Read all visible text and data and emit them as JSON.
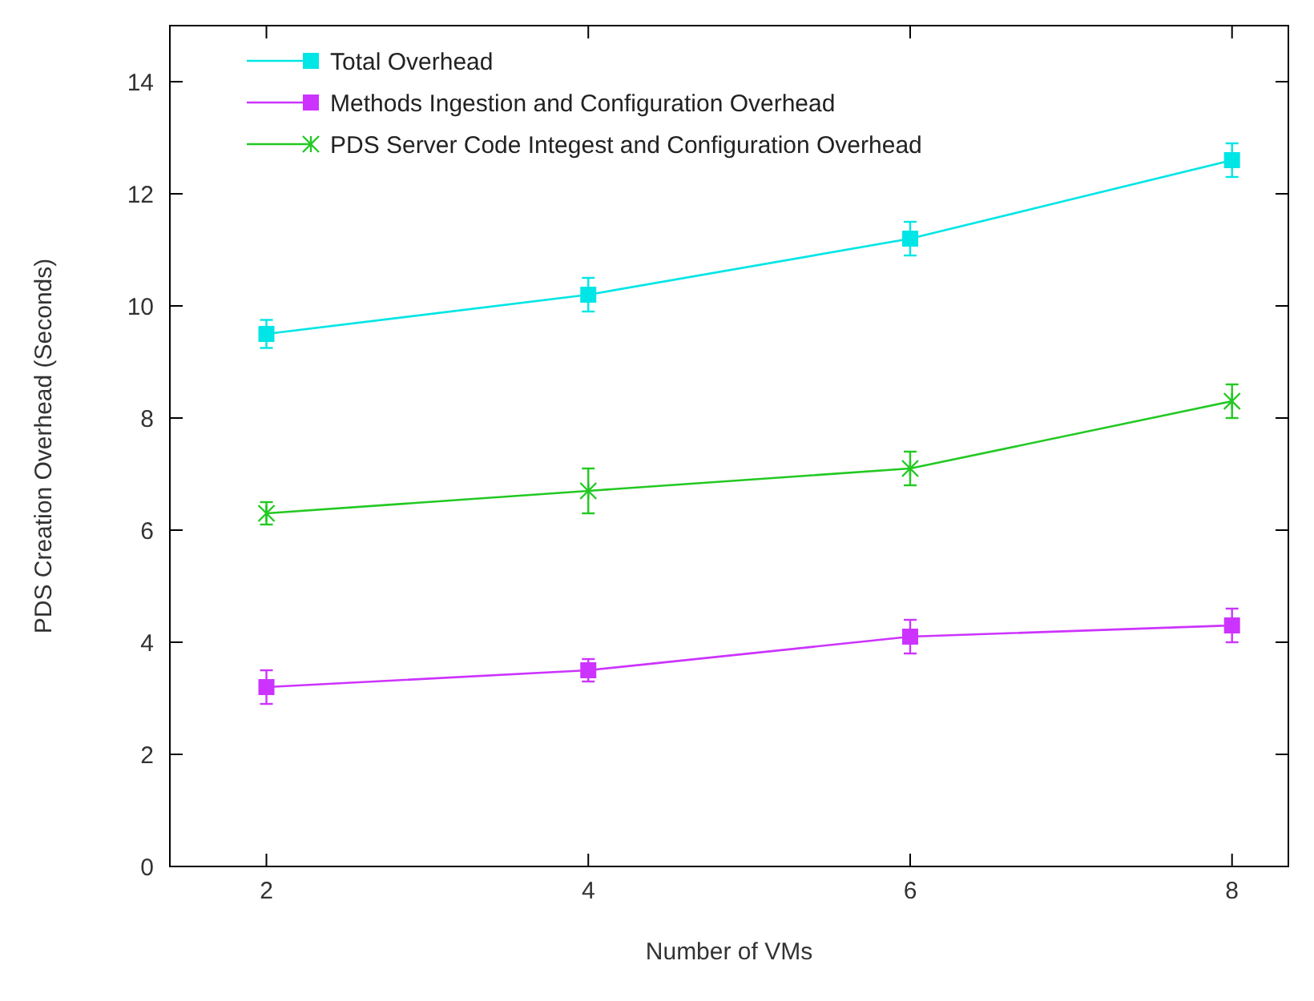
{
  "chart_data": {
    "type": "line",
    "xlabel": "Number of VMs",
    "ylabel": "PDS Creation Overhead (Seconds)",
    "x": [
      2,
      4,
      6,
      8
    ],
    "xlim": [
      1.4,
      8.35
    ],
    "xticks": [
      2,
      4,
      6,
      8
    ],
    "ylim": [
      0,
      15
    ],
    "yticks": [
      0,
      2,
      4,
      6,
      8,
      10,
      12,
      14
    ],
    "grid": false,
    "legend": "top left",
    "line_style": "solid",
    "series": [
      {
        "name": "Total Overhead",
        "color": "#00e5e5",
        "marker": "square",
        "values": [
          9.5,
          10.2,
          11.2,
          12.6
        ],
        "errors": [
          0.25,
          0.3,
          0.3,
          0.3
        ]
      },
      {
        "name": "Methods Ingestion and Configuration Overhead",
        "color": "#cc33ff",
        "marker": "square",
        "values": [
          3.2,
          3.5,
          4.1,
          4.3
        ],
        "errors": [
          0.3,
          0.2,
          0.3,
          0.3
        ]
      },
      {
        "name": "PDS Server Code Integest and Configuration Overhead",
        "color": "#22c922",
        "marker": "cross",
        "values": [
          6.3,
          6.7,
          7.1,
          8.3
        ],
        "errors": [
          0.2,
          0.4,
          0.3,
          0.3
        ]
      }
    ]
  }
}
